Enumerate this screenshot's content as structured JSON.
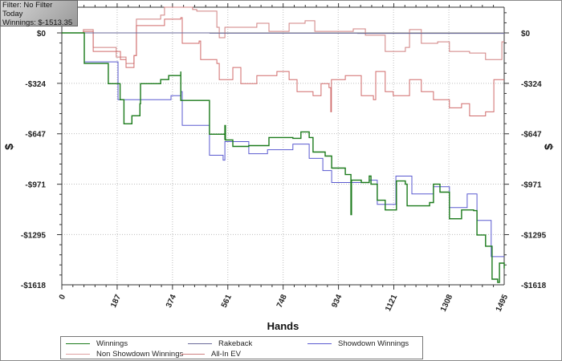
{
  "filter_box": {
    "filter": "Filter: No Filter",
    "period": "Today",
    "winnings": "Winnings: $-1513.35"
  },
  "colors": {
    "winnings": "#1a7a1a",
    "rakeback": "#6a6a9a",
    "showdown": "#5a5ad0",
    "non_showdown": "#d06a6a",
    "allin_ev": "#d08080",
    "zero_line": "#808080",
    "grid": "#bdbdbd"
  },
  "chart_data": {
    "type": "line",
    "title": "",
    "xlabel": "Hands",
    "ylabel": "$",
    "xlim": [
      0,
      1495
    ],
    "ylim": [
      -1618,
      165
    ],
    "x_ticks": [
      0,
      187,
      374,
      561,
      748,
      934,
      1121,
      1308,
      1495
    ],
    "x_tick_labels": [
      "0",
      "187",
      "374",
      "561",
      "748",
      "934",
      "1121",
      "1308",
      "1495"
    ],
    "y_ticks": [
      0,
      -324,
      -647,
      -971,
      -1295,
      -1618
    ],
    "y_tick_labels": [
      "$0",
      "-$324",
      "-$647",
      "-$971",
      "-$1295",
      "-$1618"
    ],
    "grid": true,
    "legend_position": "bottom",
    "series": [
      {
        "name": "Winnings",
        "color_key": "winnings",
        "points": [
          [
            0,
            0
          ],
          [
            76,
            -15
          ],
          [
            76,
            -196
          ],
          [
            144,
            -196
          ],
          [
            157,
            -326
          ],
          [
            197,
            -429
          ],
          [
            210,
            -584
          ],
          [
            237,
            -532
          ],
          [
            264,
            -455
          ],
          [
            266,
            -326
          ],
          [
            334,
            -300
          ],
          [
            361,
            -274
          ],
          [
            402,
            -248
          ],
          [
            402,
            -434
          ],
          [
            499,
            -434
          ],
          [
            499,
            -651
          ],
          [
            551,
            -688
          ],
          [
            551,
            -595
          ],
          [
            553,
            -688
          ],
          [
            578,
            -729
          ],
          [
            632,
            -724
          ],
          [
            700,
            -672
          ],
          [
            781,
            -677
          ],
          [
            808,
            -636
          ],
          [
            836,
            -672
          ],
          [
            849,
            -765
          ],
          [
            890,
            -791
          ],
          [
            912,
            -868
          ],
          [
            958,
            -910
          ],
          [
            977,
            -946
          ],
          [
            977,
            -1167
          ],
          [
            979,
            -946
          ],
          [
            1012,
            -961
          ],
          [
            1039,
            -920
          ],
          [
            1045,
            -972
          ],
          [
            1066,
            -1075
          ],
          [
            1093,
            -1137
          ],
          [
            1126,
            -1137
          ],
          [
            1131,
            -951
          ],
          [
            1161,
            -972
          ],
          [
            1167,
            -1111
          ],
          [
            1243,
            -1090
          ],
          [
            1256,
            -972
          ],
          [
            1278,
            -1023
          ],
          [
            1310,
            -1194
          ],
          [
            1351,
            -1137
          ],
          [
            1392,
            -1142
          ],
          [
            1403,
            -1298
          ],
          [
            1432,
            -1370
          ],
          [
            1454,
            -1582
          ],
          [
            1473,
            -1603
          ],
          [
            1479,
            -1479
          ],
          [
            1495,
            -1513
          ]
        ]
      },
      {
        "name": "Rakeback",
        "color_key": "rakeback",
        "points": [
          [
            0,
            0
          ],
          [
            500,
            -2
          ],
          [
            1000,
            -3
          ],
          [
            1495,
            -4
          ]
        ]
      },
      {
        "name": "Showdown Winnings",
        "color_key": "showdown",
        "points": [
          [
            0,
            0
          ],
          [
            73,
            0
          ],
          [
            76,
            -186
          ],
          [
            184,
            -186
          ],
          [
            190,
            -429
          ],
          [
            369,
            -403
          ],
          [
            402,
            -377
          ],
          [
            407,
            -594
          ],
          [
            499,
            -594
          ],
          [
            499,
            -786
          ],
          [
            545,
            -817
          ],
          [
            551,
            -698
          ],
          [
            632,
            -698
          ],
          [
            632,
            -776
          ],
          [
            695,
            -776
          ],
          [
            695,
            -750
          ],
          [
            781,
            -750
          ],
          [
            781,
            -714
          ],
          [
            836,
            -714
          ],
          [
            836,
            -806
          ],
          [
            882,
            -884
          ],
          [
            912,
            -961
          ],
          [
            1004,
            -961
          ],
          [
            1039,
            -946
          ],
          [
            1066,
            -1101
          ],
          [
            1126,
            -1101
          ],
          [
            1129,
            -920
          ],
          [
            1183,
            -946
          ],
          [
            1183,
            -1034
          ],
          [
            1251,
            -1034
          ],
          [
            1256,
            -988
          ],
          [
            1310,
            -1122
          ],
          [
            1370,
            -1122
          ],
          [
            1370,
            -1034
          ],
          [
            1403,
            -1034
          ],
          [
            1403,
            -1204
          ],
          [
            1451,
            -1204
          ],
          [
            1451,
            -1437
          ],
          [
            1495,
            -1437
          ]
        ]
      },
      {
        "name": "Non Showdown Winnings",
        "color_key": "non_showdown",
        "points": [
          [
            0,
            0
          ],
          [
            73,
            10
          ],
          [
            106,
            -119
          ],
          [
            198,
            -171
          ],
          [
            217,
            -222
          ],
          [
            244,
            -145
          ],
          [
            252,
            47
          ],
          [
            347,
            88
          ],
          [
            402,
            98
          ],
          [
            407,
            -67
          ],
          [
            464,
            -52
          ],
          [
            469,
            -171
          ],
          [
            524,
            -196
          ],
          [
            532,
            -300
          ],
          [
            578,
            -222
          ],
          [
            605,
            -326
          ],
          [
            659,
            -274
          ],
          [
            727,
            -248
          ],
          [
            768,
            -300
          ],
          [
            795,
            -377
          ],
          [
            849,
            -403
          ],
          [
            876,
            -326
          ],
          [
            903,
            -352
          ],
          [
            909,
            -507
          ],
          [
            911,
            -300
          ],
          [
            958,
            -274
          ],
          [
            1012,
            -403
          ],
          [
            1053,
            -429
          ],
          [
            1061,
            -248
          ],
          [
            1093,
            -377
          ],
          [
            1120,
            -403
          ],
          [
            1175,
            -300
          ],
          [
            1215,
            -377
          ],
          [
            1256,
            -429
          ],
          [
            1310,
            -481
          ],
          [
            1351,
            -455
          ],
          [
            1378,
            -533
          ],
          [
            1432,
            -507
          ],
          [
            1460,
            -300
          ],
          [
            1495,
            -300
          ]
        ]
      },
      {
        "name": "All-In EV",
        "color_key": "allin_ev",
        "points": [
          [
            0,
            0
          ],
          [
            73,
            21
          ],
          [
            100,
            21
          ],
          [
            106,
            -93
          ],
          [
            184,
            -155
          ],
          [
            217,
            -196
          ],
          [
            244,
            -145
          ],
          [
            252,
            88
          ],
          [
            334,
            114
          ],
          [
            347,
            165
          ],
          [
            442,
            150
          ],
          [
            456,
            140
          ],
          [
            524,
            36
          ],
          [
            532,
            -31
          ],
          [
            551,
            36
          ],
          [
            659,
            62
          ],
          [
            700,
            10
          ],
          [
            768,
            62
          ],
          [
            822,
            78
          ],
          [
            855,
            10
          ],
          [
            985,
            26
          ],
          [
            1026,
            -15
          ],
          [
            1093,
            -119
          ],
          [
            1161,
            -93
          ],
          [
            1175,
            21
          ],
          [
            1215,
            -67
          ],
          [
            1270,
            -57
          ],
          [
            1310,
            -119
          ],
          [
            1378,
            -129
          ],
          [
            1432,
            -171
          ],
          [
            1473,
            -171
          ],
          [
            1487,
            -57
          ],
          [
            1495,
            -57
          ]
        ]
      }
    ]
  }
}
